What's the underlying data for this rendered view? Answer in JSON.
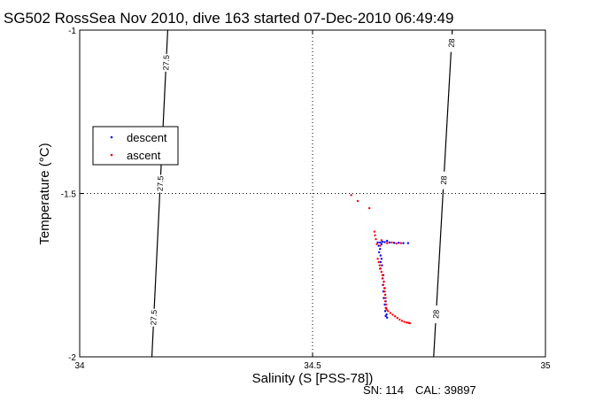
{
  "chart_data": {
    "type": "scatter",
    "title": "SG502 RossSea Nov 2010, dive 163 started 07-Dec-2010 06:49:49",
    "xlabel": "Salinity (S [PSS-78])",
    "ylabel": "Temperature (°C)",
    "xlim": [
      34,
      35
    ],
    "ylim": [
      -2,
      -1
    ],
    "x_ticks": [
      34,
      34.5,
      35
    ],
    "x_tick_labels": [
      "34",
      "34.5",
      "35"
    ],
    "y_ticks": [
      -2,
      -1.5,
      -1
    ],
    "y_tick_labels": [
      "-2",
      "-1.5",
      "-1"
    ],
    "grid": "dotted lines at x=34.5 and y=-1.5",
    "legend": {
      "placement": "left",
      "entries": [
        {
          "label": "descent",
          "color": "#0000ff"
        },
        {
          "label": "ascent",
          "color": "#ff0000"
        }
      ]
    },
    "contours": [
      {
        "label": "27.5",
        "s_at_top": 34.189,
        "s_at_bottom": 34.155,
        "label_t": [
          -1.1,
          -1.47,
          -1.88
        ]
      },
      {
        "label": "28",
        "s_at_top": 34.8,
        "s_at_bottom": 34.76,
        "label_t": [
          -1.04,
          -1.46,
          -1.87
        ]
      }
    ],
    "series": [
      {
        "name": "descent",
        "color": "#0000ff",
        "points": [
          [
            34.655,
            -1.649
          ],
          [
            34.665,
            -1.65
          ],
          [
            34.675,
            -1.651
          ],
          [
            34.685,
            -1.651
          ],
          [
            34.695,
            -1.652
          ],
          [
            34.705,
            -1.652
          ],
          [
            34.66,
            -1.645
          ],
          [
            34.65,
            -1.648
          ],
          [
            34.645,
            -1.65
          ],
          [
            34.648,
            -1.655
          ],
          [
            34.64,
            -1.65
          ],
          [
            34.642,
            -1.66
          ],
          [
            34.645,
            -1.67
          ],
          [
            34.643,
            -1.68
          ],
          [
            34.646,
            -1.69
          ],
          [
            34.648,
            -1.7
          ],
          [
            34.646,
            -1.71
          ],
          [
            34.649,
            -1.72
          ],
          [
            34.645,
            -1.73
          ],
          [
            34.648,
            -1.74
          ],
          [
            34.652,
            -1.75
          ],
          [
            34.65,
            -1.76
          ],
          [
            34.653,
            -1.77
          ],
          [
            34.651,
            -1.78
          ],
          [
            34.655,
            -1.79
          ],
          [
            34.652,
            -1.8
          ],
          [
            34.656,
            -1.81
          ],
          [
            34.653,
            -1.82
          ],
          [
            34.657,
            -1.83
          ],
          [
            34.655,
            -1.84
          ],
          [
            34.658,
            -1.85
          ],
          [
            34.656,
            -1.86
          ],
          [
            34.659,
            -1.87
          ],
          [
            34.657,
            -1.875
          ],
          [
            34.66,
            -1.88
          ]
        ]
      },
      {
        "name": "ascent",
        "color": "#ff0000",
        "points": [
          [
            34.583,
            -1.505
          ],
          [
            34.597,
            -1.523
          ],
          [
            34.622,
            -1.545
          ],
          [
            34.633,
            -1.617
          ],
          [
            34.634,
            -1.628
          ],
          [
            34.636,
            -1.64
          ],
          [
            34.638,
            -1.655
          ],
          [
            34.66,
            -1.652
          ],
          [
            34.67,
            -1.65
          ],
          [
            34.68,
            -1.653
          ],
          [
            34.69,
            -1.652
          ],
          [
            34.648,
            -1.643
          ],
          [
            34.645,
            -1.66
          ],
          [
            34.64,
            -1.7
          ],
          [
            34.642,
            -1.71
          ],
          [
            34.644,
            -1.72
          ],
          [
            34.646,
            -1.73
          ],
          [
            34.648,
            -1.74
          ],
          [
            34.65,
            -1.75
          ],
          [
            34.651,
            -1.76
          ],
          [
            34.653,
            -1.77
          ],
          [
            34.652,
            -1.78
          ],
          [
            34.654,
            -1.79
          ],
          [
            34.655,
            -1.8
          ],
          [
            34.656,
            -1.81
          ],
          [
            34.657,
            -1.82
          ],
          [
            34.656,
            -1.83
          ],
          [
            34.658,
            -1.84
          ],
          [
            34.657,
            -1.85
          ],
          [
            34.659,
            -1.855
          ],
          [
            34.662,
            -1.86
          ],
          [
            34.667,
            -1.866
          ],
          [
            34.672,
            -1.871
          ],
          [
            34.677,
            -1.876
          ],
          [
            34.682,
            -1.881
          ],
          [
            34.687,
            -1.886
          ],
          [
            34.692,
            -1.89
          ],
          [
            34.697,
            -1.893
          ],
          [
            34.702,
            -1.895
          ],
          [
            34.706,
            -1.896
          ],
          [
            34.709,
            -1.897
          ]
        ]
      }
    ]
  },
  "footer": {
    "sn_label": "SN: 114",
    "cal_label": "CAL: 39897"
  }
}
